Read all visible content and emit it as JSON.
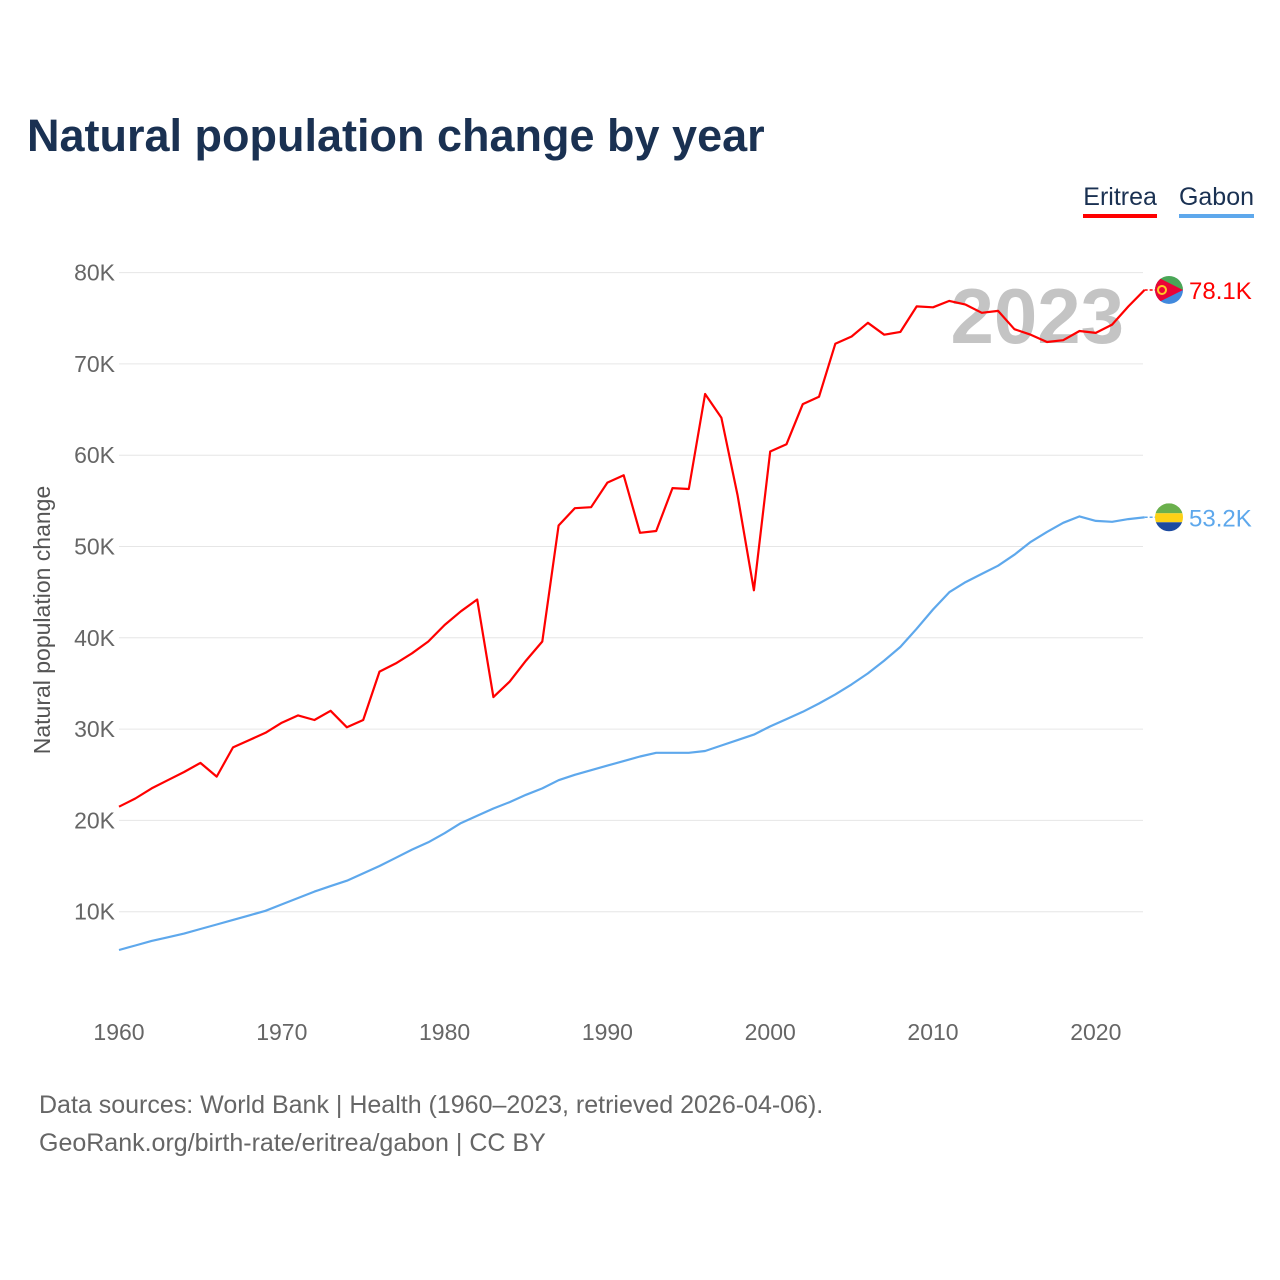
{
  "title": "Natural population change by year",
  "footer": {
    "line1": "Data sources: World Bank | Health (1960–2023, retrieved 2026-04-06).",
    "line2": "GeoRank.org/birth-rate/eritrea/gabon | CC BY"
  },
  "chart_data": {
    "type": "line",
    "title": "Natural population change by year",
    "xlabel": "",
    "ylabel": "Natural population change",
    "year_watermark": "2023",
    "xlim": [
      1960,
      2023
    ],
    "ylim": [
      0,
      80000
    ],
    "x_ticks": [
      1960,
      1970,
      1980,
      1990,
      2000,
      2010,
      2020
    ],
    "y_ticks": [
      {
        "v": 10000,
        "label": "10K"
      },
      {
        "v": 20000,
        "label": "20K"
      },
      {
        "v": 30000,
        "label": "30K"
      },
      {
        "v": 40000,
        "label": "40K"
      },
      {
        "v": 50000,
        "label": "50K"
      },
      {
        "v": 60000,
        "label": "60K"
      },
      {
        "v": 70000,
        "label": "70K"
      },
      {
        "v": 80000,
        "label": "80K"
      }
    ],
    "grid": true,
    "legend_position": "top-right",
    "x_start": 1960,
    "series": [
      {
        "name": "Eritrea",
        "color": "#ff0000",
        "end_label": "78.1K",
        "values": [
          21.5,
          22.4,
          23.5,
          24.4,
          25.3,
          26.3,
          24.8,
          28.0,
          28.8,
          29.6,
          30.7,
          31.5,
          31.0,
          32.0,
          30.2,
          31.0,
          36.3,
          37.2,
          38.3,
          39.6,
          41.4,
          42.9,
          44.2,
          33.5,
          35.2,
          37.5,
          39.6,
          52.3,
          54.2,
          54.3,
          57.0,
          57.8,
          51.5,
          51.7,
          56.4,
          56.3,
          66.7,
          64.1,
          55.6,
          45.2,
          60.4,
          61.2,
          65.6,
          66.4,
          72.2,
          73.0,
          74.5,
          73.2,
          73.5,
          76.3,
          76.2,
          76.9,
          76.5,
          75.6,
          75.8,
          73.8,
          73.2,
          72.4,
          72.6,
          73.6,
          73.4,
          74.3,
          76.3,
          78.1
        ]
      },
      {
        "name": "Gabon",
        "color": "#5ea8ec",
        "end_label": "53.2K",
        "values": [
          5.8,
          6.3,
          6.8,
          7.2,
          7.6,
          8.1,
          8.6,
          9.1,
          9.6,
          10.1,
          10.8,
          11.5,
          12.2,
          12.8,
          13.4,
          14.2,
          15.0,
          15.9,
          16.8,
          17.6,
          18.6,
          19.7,
          20.5,
          21.3,
          22.0,
          22.8,
          23.5,
          24.4,
          25.0,
          25.5,
          26.0,
          26.5,
          27.0,
          27.4,
          27.4,
          27.4,
          27.6,
          28.2,
          28.8,
          29.4,
          30.3,
          31.1,
          31.9,
          32.8,
          33.8,
          34.9,
          36.1,
          37.5,
          39.0,
          41.0,
          43.1,
          45.0,
          46.1,
          47.0,
          47.9,
          49.1,
          50.5,
          51.6,
          52.6,
          53.3,
          52.8,
          52.7,
          53.0,
          53.2
        ]
      }
    ],
    "value_unit": "thousands"
  }
}
